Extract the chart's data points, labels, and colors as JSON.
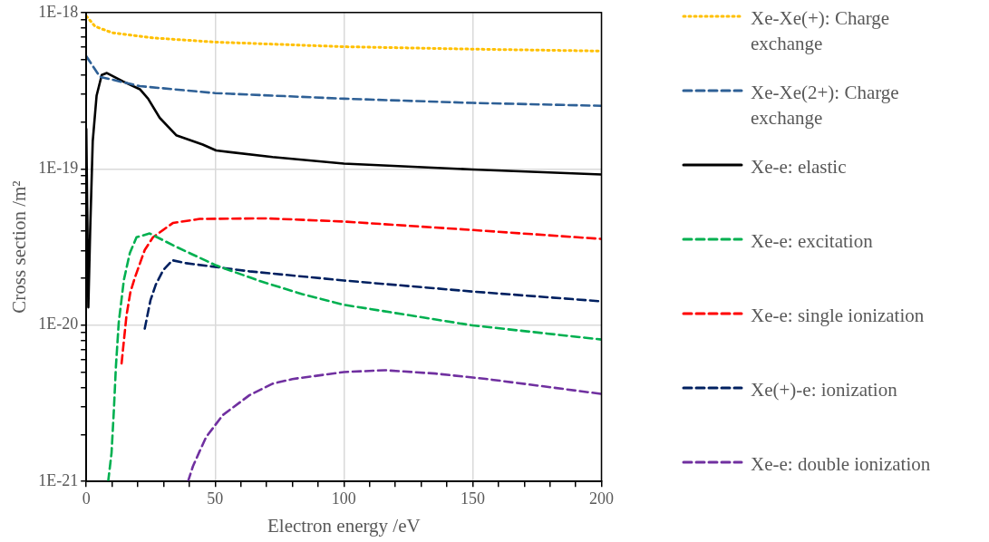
{
  "chart_data": {
    "type": "line",
    "xlabel": "Electron energy /eV",
    "ylabel": "Cross section /m²",
    "log": "y",
    "grid": true,
    "legend": "right",
    "marker": "none",
    "xlim": [
      0,
      200
    ],
    "xticks": [
      0,
      {
        "value": 10,
        "label": null
      },
      {
        "value": 20,
        "label": null
      },
      {
        "value": 30,
        "label": null
      },
      {
        "value": 40,
        "label": null
      },
      50,
      {
        "value": 60,
        "label": null
      },
      {
        "value": 70,
        "label": null
      },
      {
        "value": 80,
        "label": null
      },
      {
        "value": 90,
        "label": null
      },
      100,
      {
        "value": 110,
        "label": null
      },
      {
        "value": 120,
        "label": null
      },
      {
        "value": 130,
        "label": null
      },
      {
        "value": 140,
        "label": null
      },
      150,
      {
        "value": 160,
        "label": null
      },
      {
        "value": 170,
        "label": null
      },
      {
        "value": 180,
        "label": null
      },
      {
        "value": 190,
        "label": null
      },
      200
    ],
    "ylim": [
      1e-21,
      1e-18
    ],
    "yticks": [
      {
        "value": 1e-21,
        "label": "1E-21"
      },
      {
        "value": 2e-21,
        "label": null
      },
      {
        "value": 3e-21,
        "label": null
      },
      {
        "value": 4e-21,
        "label": null
      },
      {
        "value": 5e-21,
        "label": null
      },
      {
        "value": 6e-21,
        "label": null
      },
      {
        "value": 7e-21,
        "label": null
      },
      {
        "value": 8e-21,
        "label": null
      },
      {
        "value": 9e-21,
        "label": null
      },
      {
        "value": 1e-20,
        "label": "1E-20"
      },
      {
        "value": 2e-20,
        "label": null
      },
      {
        "value": 3e-20,
        "label": null
      },
      {
        "value": 4e-20,
        "label": null
      },
      {
        "value": 5e-20,
        "label": null
      },
      {
        "value": 6e-20,
        "label": null
      },
      {
        "value": 7e-20,
        "label": null
      },
      {
        "value": 8e-20,
        "label": null
      },
      {
        "value": 9e-20,
        "label": null
      },
      {
        "value": 1e-19,
        "label": "1E-19"
      },
      {
        "value": 2e-19,
        "label": null
      },
      {
        "value": 3e-19,
        "label": null
      },
      {
        "value": 4e-19,
        "label": null
      },
      {
        "value": 5e-19,
        "label": null
      },
      {
        "value": 6e-19,
        "label": null
      },
      {
        "value": 7e-19,
        "label": null
      },
      {
        "value": 8e-19,
        "label": null
      },
      {
        "value": 9e-19,
        "label": null
      },
      {
        "value": 1e-18,
        "label": "1E-18"
      }
    ],
    "series": [
      {
        "name": "Xe-Xe(+): Charge exchange",
        "color": "#ffc000",
        "line_style": "dotted",
        "x": [
          0,
          3.4,
          10,
          26.3,
          50,
          100,
          150,
          200
        ],
        "values": [
          9.5e-19,
          8.15e-19,
          7.43e-19,
          6.87e-19,
          6.47e-19,
          6.04e-19,
          5.83e-19,
          5.67e-19
        ]
      },
      {
        "name": "Xe-Xe(2+): Charge exchange",
        "color": "#2e6096",
        "line_style": "dashed",
        "x": [
          0,
          5.3,
          20.8,
          50,
          100,
          150,
          200
        ],
        "values": [
          5.25e-19,
          3.88e-19,
          3.38e-19,
          3.05e-19,
          2.81e-19,
          2.64e-19,
          2.53e-19
        ]
      },
      {
        "name": "Xe-e: elastic",
        "color": "#000000",
        "line_style": "solid",
        "x": [
          0,
          0.8,
          1.5,
          2.5,
          4,
          6,
          8,
          14.3,
          20.8,
          24,
          28.5,
          34.9,
          45.2,
          50.4,
          72.3,
          100,
          150,
          200
        ],
        "values": [
          1.8e-19,
          1.3e-20,
          4e-20,
          1.5e-19,
          2.94e-19,
          3.98e-19,
          4.1e-19,
          3.62e-19,
          3.23e-19,
          2.81e-19,
          2.12e-19,
          1.64e-19,
          1.43e-19,
          1.31e-19,
          1.19e-19,
          1.08e-19,
          9.9e-20,
          9.2e-20
        ]
      },
      {
        "name": "Xe-e: excitation",
        "color": "#00b050",
        "line_style": "dashed",
        "x": [
          8.5,
          9.8,
          10.7,
          11.5,
          12.6,
          14.6,
          16.9,
          19.5,
          24.6,
          34.9,
          50.4,
          67.2,
          83.8,
          100,
          150,
          200
        ],
        "values": [
          1e-21,
          1.52e-21,
          2.84e-21,
          5.44e-21,
          1.04e-20,
          1.95e-20,
          2.89e-20,
          3.65e-20,
          3.86e-20,
          3.17e-20,
          2.41e-20,
          1.92e-20,
          1.58e-20,
          1.35e-20,
          9.96e-21,
          8.09e-21
        ]
      },
      {
        "name": "Xe-e: single ionization",
        "color": "#ff0000",
        "line_style": "dashed",
        "x": [
          13.7,
          15.6,
          17.1,
          18.8,
          22.7,
          25.9,
          33.6,
          44,
          69.7,
          100,
          150,
          200
        ],
        "values": [
          5.7e-21,
          1.15e-20,
          1.62e-20,
          2e-20,
          3.03e-20,
          3.65e-20,
          4.5e-20,
          4.78e-20,
          4.82e-20,
          4.6e-20,
          4.06e-20,
          3.56e-20
        ]
      },
      {
        "name": "Xe(+)-e: ionization",
        "color": "#002060",
        "line_style": "dashed",
        "x": [
          22.7,
          24.9,
          27,
          29.8,
          33.4,
          38.8,
          63.3,
          100,
          150,
          200
        ],
        "values": [
          9.5e-21,
          1.44e-20,
          1.82e-20,
          2.24e-20,
          2.6e-20,
          2.49e-20,
          2.21e-20,
          1.93e-20,
          1.64e-20,
          1.42e-20
        ]
      },
      {
        "name": "Xe-e: double ionization",
        "color": "#7030a0",
        "line_style": "dashed",
        "x": [
          39.5,
          41.4,
          44,
          46.5,
          53,
          63.3,
          72.3,
          80,
          100,
          116,
          135.5,
          155,
          174,
          200
        ],
        "values": [
          1e-21,
          1.25e-21,
          1.56e-21,
          1.92e-21,
          2.66e-21,
          3.56e-21,
          4.22e-21,
          4.52e-21,
          5.01e-21,
          5.15e-21,
          4.9e-21,
          4.53e-21,
          4.13e-21,
          3.63e-21
        ]
      }
    ]
  }
}
